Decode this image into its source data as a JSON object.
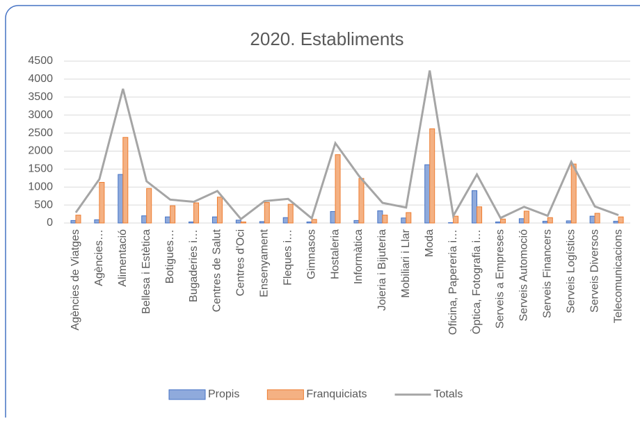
{
  "chart_data": {
    "type": "bar",
    "title": "2020. Establiments",
    "categories": [
      "Agències de Viatges",
      "Agències…",
      "Alimentació",
      "Bellesa i Estètica",
      "Botigues…",
      "Bugaderies i…",
      "Centres de Salut",
      "Centres d'Oci",
      "Ensenyament",
      "Fleques i…",
      "Gimnasos",
      "Hostaleria",
      "Informàtica",
      "Joieria i Bijuteria",
      "Mobiliari i Llar",
      "Moda",
      "Oficina, Papereria i…",
      "Òptica, Fotografia i…",
      "Serveis a Empreses",
      "Serveis Automoció",
      "Serveis Financers",
      "Serveis Logístics",
      "Serveis Diversos",
      "Telecomunicacions"
    ],
    "series": [
      {
        "name": "Propis",
        "type": "bar",
        "color": "#4472c4",
        "values": [
          70,
          90,
          1350,
          200,
          170,
          30,
          170,
          80,
          40,
          150,
          30,
          320,
          70,
          340,
          140,
          1620,
          10,
          900,
          30,
          120,
          50,
          60,
          190,
          50
        ]
      },
      {
        "name": "Franquiciats",
        "type": "bar",
        "color": "#ed7d31",
        "values": [
          220,
          1130,
          2380,
          960,
          480,
          560,
          720,
          30,
          570,
          520,
          100,
          1900,
          1240,
          220,
          290,
          2620,
          190,
          450,
          110,
          330,
          150,
          1640,
          270,
          170
        ]
      },
      {
        "name": "Totals",
        "type": "line",
        "color": "#a5a5a5",
        "values": [
          290,
          1220,
          3730,
          1160,
          650,
          590,
          890,
          110,
          610,
          670,
          130,
          2220,
          1310,
          560,
          430,
          4240,
          200,
          1350,
          140,
          450,
          200,
          1700,
          460,
          220
        ]
      }
    ],
    "ylim": [
      0,
      4500
    ],
    "yticks": [
      0,
      500,
      1000,
      1500,
      2000,
      2500,
      3000,
      3500,
      4000,
      4500
    ],
    "grid": true,
    "legend": "bottom"
  }
}
